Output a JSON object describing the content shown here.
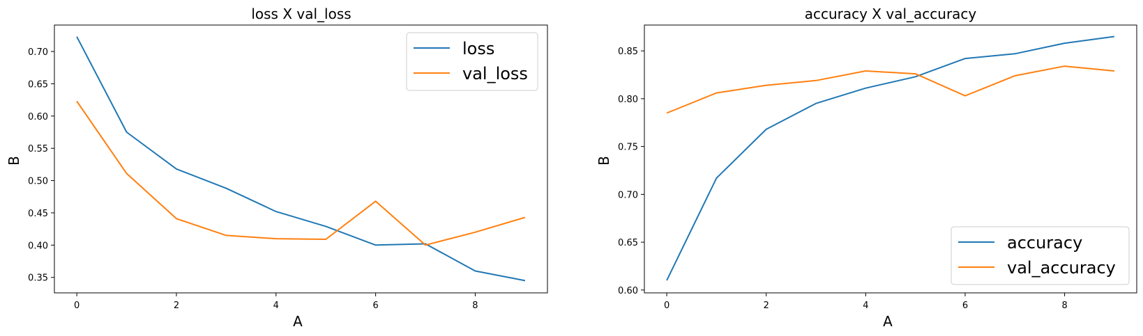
{
  "colors": {
    "series1": "#1f77b4",
    "series2": "#ff7f0e",
    "frame": "#000000",
    "legend_border": "#cccccc"
  },
  "chart_data": [
    {
      "type": "line",
      "title": "loss X val_loss",
      "xlabel": "A",
      "ylabel": "B",
      "x": [
        0,
        1,
        2,
        3,
        4,
        5,
        6,
        7,
        8,
        9
      ],
      "xlim": [
        -0.45,
        9.45
      ],
      "ylim": [
        0.326,
        0.741
      ],
      "xticks": [
        0,
        2,
        4,
        6,
        8
      ],
      "yticks": [
        0.35,
        0.4,
        0.45,
        0.5,
        0.55,
        0.6,
        0.65,
        0.7
      ],
      "ytick_labels": [
        "0.35",
        "0.40",
        "0.45",
        "0.50",
        "0.55",
        "0.60",
        "0.65",
        "0.70"
      ],
      "grid": false,
      "legend_position": "upper right",
      "series": [
        {
          "name": "loss",
          "color": "#1f77b4",
          "values": [
            0.723,
            0.575,
            0.518,
            0.488,
            0.452,
            0.429,
            0.4,
            0.402,
            0.36,
            0.345
          ]
        },
        {
          "name": "val_loss",
          "color": "#ff7f0e",
          "values": [
            0.623,
            0.511,
            0.441,
            0.415,
            0.41,
            0.409,
            0.468,
            0.4,
            0.42,
            0.443
          ]
        }
      ]
    },
    {
      "type": "line",
      "title": "accuracy X val_accuracy",
      "xlabel": "A",
      "ylabel": "B",
      "x": [
        0,
        1,
        2,
        3,
        4,
        5,
        6,
        7,
        8,
        9
      ],
      "xlim": [
        -0.45,
        9.45
      ],
      "ylim": [
        0.597,
        0.877
      ],
      "xticks": [
        0,
        2,
        4,
        6,
        8
      ],
      "yticks": [
        0.6,
        0.65,
        0.7,
        0.75,
        0.8,
        0.85
      ],
      "ytick_labels": [
        "0.60",
        "0.65",
        "0.70",
        "0.75",
        "0.80",
        "0.85"
      ],
      "grid": false,
      "legend_position": "lower right",
      "series": [
        {
          "name": "accuracy",
          "color": "#1f77b4",
          "values": [
            0.61,
            0.717,
            0.768,
            0.795,
            0.811,
            0.823,
            0.842,
            0.847,
            0.858,
            0.865
          ]
        },
        {
          "name": "val_accuracy",
          "color": "#ff7f0e",
          "values": [
            0.785,
            0.806,
            0.814,
            0.819,
            0.829,
            0.826,
            0.803,
            0.824,
            0.834,
            0.829
          ]
        }
      ]
    }
  ]
}
